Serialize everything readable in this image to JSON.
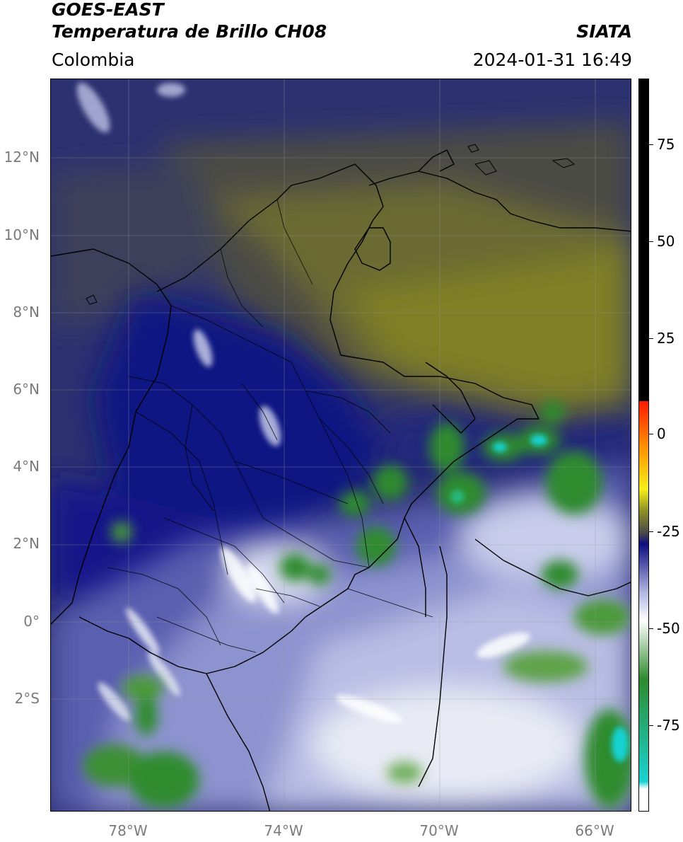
{
  "header": {
    "line1": "GOES-EAST",
    "line2": "Temperatura de Brillo CH08",
    "brand": "SIATA",
    "region": "Colombia",
    "datetime": "2024-01-31 16:49"
  },
  "map": {
    "lat_labels": [
      "12°N",
      "10°N",
      "8°N",
      "6°N",
      "4°N",
      "2°N",
      "0°",
      "2°S"
    ],
    "lon_labels": [
      "78°W",
      "74°W",
      "70°W",
      "66°W"
    ],
    "lon_range": [
      -80,
      -65
    ],
    "lat_range": [
      -5,
      14
    ]
  },
  "colorbar": {
    "ticks": [
      "75",
      "50",
      "25",
      "0",
      "-25",
      "-50",
      "-75"
    ],
    "range": [
      -95,
      90
    ],
    "colors": {
      "above_10": "#000000",
      "red": "#ff1a00",
      "orange": "#ff8c00",
      "yellow": "#f5ef1a",
      "olive": "#8f8f25",
      "gray": "#4a4a4a",
      "navy": "#0d0d80",
      "light_blue": "#aeb4df",
      "white": "#ffffff",
      "green": "#2e8b2e",
      "cyan": "#19d2d2"
    }
  }
}
